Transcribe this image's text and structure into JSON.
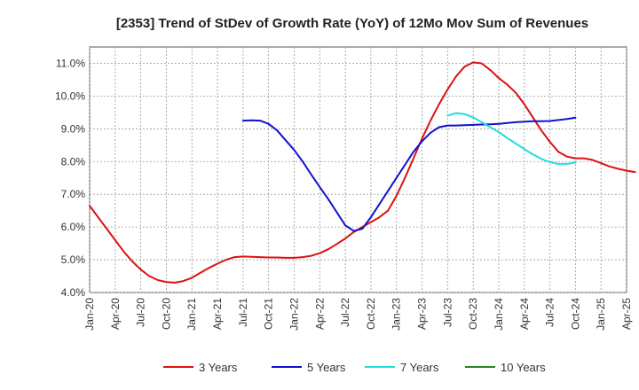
{
  "chart_data": {
    "type": "line",
    "title": "[2353]  Trend of StDev of Growth Rate (YoY) of 12Mo Mov Sum of Revenues",
    "xlabel": "",
    "ylabel": "",
    "ylim": [
      4.0,
      11.5
    ],
    "y_ticks": [
      4.0,
      5.0,
      6.0,
      7.0,
      8.0,
      9.0,
      10.0,
      11.0
    ],
    "y_tick_labels": [
      "4.0%",
      "5.0%",
      "6.0%",
      "7.0%",
      "8.0%",
      "9.0%",
      "10.0%",
      "11.0%"
    ],
    "x_tick_labels": [
      "Jan-20",
      "Apr-20",
      "Jul-20",
      "Oct-20",
      "Jan-21",
      "Apr-21",
      "Jul-21",
      "Oct-21",
      "Jan-22",
      "Apr-22",
      "Jul-22",
      "Oct-22",
      "Jan-23",
      "Apr-23",
      "Jul-23",
      "Oct-23",
      "Jan-24",
      "Apr-24",
      "Jul-24",
      "Oct-24",
      "Jan-25",
      "Apr-25"
    ],
    "grid": true,
    "legend_position": "bottom",
    "series": [
      {
        "name": "3 Years",
        "color": "#dd1111",
        "points": [
          [
            0,
            6.65
          ],
          [
            1,
            6.3
          ],
          [
            2,
            5.95
          ],
          [
            3,
            5.6
          ],
          [
            4,
            5.25
          ],
          [
            5,
            4.95
          ],
          [
            6,
            4.7
          ],
          [
            7,
            4.5
          ],
          [
            8,
            4.38
          ],
          [
            9,
            4.32
          ],
          [
            10,
            4.3
          ],
          [
            11,
            4.35
          ],
          [
            12,
            4.45
          ],
          [
            13,
            4.6
          ],
          [
            14,
            4.75
          ],
          [
            15,
            4.88
          ],
          [
            16,
            5.0
          ],
          [
            17,
            5.08
          ],
          [
            18,
            5.1
          ],
          [
            19,
            5.09
          ],
          [
            20,
            5.08
          ],
          [
            21,
            5.07
          ],
          [
            22,
            5.07
          ],
          [
            23,
            5.06
          ],
          [
            24,
            5.06
          ],
          [
            25,
            5.08
          ],
          [
            26,
            5.12
          ],
          [
            27,
            5.2
          ],
          [
            28,
            5.32
          ],
          [
            29,
            5.48
          ],
          [
            30,
            5.65
          ],
          [
            31,
            5.85
          ],
          [
            32,
            6.0
          ],
          [
            33,
            6.15
          ],
          [
            34,
            6.3
          ],
          [
            35,
            6.5
          ],
          [
            36,
            6.95
          ],
          [
            37,
            7.5
          ],
          [
            38,
            8.1
          ],
          [
            39,
            8.7
          ],
          [
            40,
            9.25
          ],
          [
            41,
            9.75
          ],
          [
            42,
            10.2
          ],
          [
            43,
            10.6
          ],
          [
            44,
            10.9
          ],
          [
            45,
            11.03
          ],
          [
            46,
            11.0
          ],
          [
            47,
            10.8
          ],
          [
            48,
            10.55
          ],
          [
            49,
            10.35
          ],
          [
            50,
            10.1
          ],
          [
            51,
            9.75
          ],
          [
            52,
            9.35
          ],
          [
            53,
            8.95
          ],
          [
            54,
            8.6
          ],
          [
            55,
            8.3
          ],
          [
            56,
            8.15
          ],
          [
            57,
            8.1
          ],
          [
            58,
            8.1
          ],
          [
            59,
            8.05
          ],
          [
            60,
            7.95
          ],
          [
            61,
            7.85
          ],
          [
            62,
            7.78
          ],
          [
            63,
            7.72
          ],
          [
            64,
            7.68
          ]
        ]
      },
      {
        "name": "5 Years",
        "color": "#1111cc",
        "points": [
          [
            18,
            9.25
          ],
          [
            19,
            9.26
          ],
          [
            20,
            9.25
          ],
          [
            21,
            9.15
          ],
          [
            22,
            8.95
          ],
          [
            23,
            8.65
          ],
          [
            24,
            8.35
          ],
          [
            25,
            8.0
          ],
          [
            26,
            7.6
          ],
          [
            27,
            7.22
          ],
          [
            28,
            6.85
          ],
          [
            29,
            6.45
          ],
          [
            30,
            6.05
          ],
          [
            31,
            5.88
          ],
          [
            32,
            5.95
          ],
          [
            33,
            6.3
          ],
          [
            34,
            6.7
          ],
          [
            35,
            7.1
          ],
          [
            36,
            7.5
          ],
          [
            37,
            7.9
          ],
          [
            38,
            8.3
          ],
          [
            39,
            8.62
          ],
          [
            40,
            8.88
          ],
          [
            41,
            9.05
          ],
          [
            42,
            9.1
          ],
          [
            43,
            9.1
          ],
          [
            44,
            9.11
          ],
          [
            45,
            9.12
          ],
          [
            46,
            9.13
          ],
          [
            47,
            9.14
          ],
          [
            48,
            9.15
          ],
          [
            49,
            9.18
          ],
          [
            50,
            9.2
          ],
          [
            51,
            9.22
          ],
          [
            52,
            9.23
          ],
          [
            53,
            9.23
          ],
          [
            54,
            9.24
          ],
          [
            55,
            9.27
          ],
          [
            56,
            9.3
          ],
          [
            57,
            9.34
          ]
        ]
      },
      {
        "name": "7 Years",
        "color": "#22dddd",
        "points": [
          [
            42,
            9.4
          ],
          [
            43,
            9.48
          ],
          [
            44,
            9.45
          ],
          [
            45,
            9.35
          ],
          [
            46,
            9.2
          ],
          [
            47,
            9.05
          ],
          [
            48,
            8.9
          ],
          [
            49,
            8.72
          ],
          [
            50,
            8.55
          ],
          [
            51,
            8.38
          ],
          [
            52,
            8.22
          ],
          [
            53,
            8.08
          ],
          [
            54,
            7.98
          ],
          [
            55,
            7.93
          ],
          [
            56,
            7.93
          ],
          [
            57,
            7.97
          ]
        ]
      },
      {
        "name": "10 Years",
        "color": "#228822",
        "points": []
      }
    ]
  }
}
